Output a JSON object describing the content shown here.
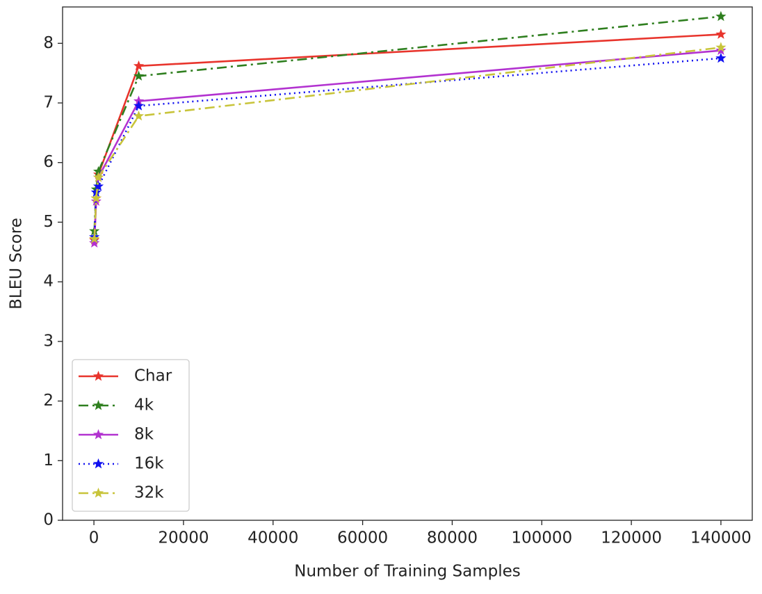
{
  "chart_data": {
    "type": "line",
    "x_label": "Number of Training Samples",
    "y_label": "BLEU Score",
    "x": [
      100,
      500,
      1000,
      10000,
      140000
    ],
    "series": [
      {
        "name": "Char",
        "color": "#e8342c",
        "dash": "solid",
        "values": [
          4.7,
          5.4,
          5.8,
          7.62,
          8.15
        ]
      },
      {
        "name": "4k",
        "color": "#2f7f1f",
        "dash": "dashdot",
        "values": [
          4.85,
          5.55,
          5.85,
          7.45,
          8.45
        ]
      },
      {
        "name": "8k",
        "color": "#b232d0",
        "dash": "solid",
        "values": [
          4.65,
          5.35,
          5.75,
          7.03,
          7.88
        ]
      },
      {
        "name": "16k",
        "color": "#1010f0",
        "dash": "dotted",
        "values": [
          4.75,
          5.5,
          5.6,
          6.95,
          7.75
        ]
      },
      {
        "name": "32k",
        "color": "#c8c43a",
        "dash": "dashdot",
        "values": [
          4.72,
          5.4,
          5.75,
          6.78,
          7.93
        ]
      }
    ],
    "xlim": [
      -7000,
      147000
    ],
    "ylim": [
      0,
      8.61
    ],
    "xticks": [
      0,
      20000,
      40000,
      60000,
      80000,
      100000,
      120000,
      140000
    ],
    "yticks": [
      0,
      1,
      2,
      3,
      4,
      5,
      6,
      7,
      8
    ],
    "legend": "lower left"
  }
}
